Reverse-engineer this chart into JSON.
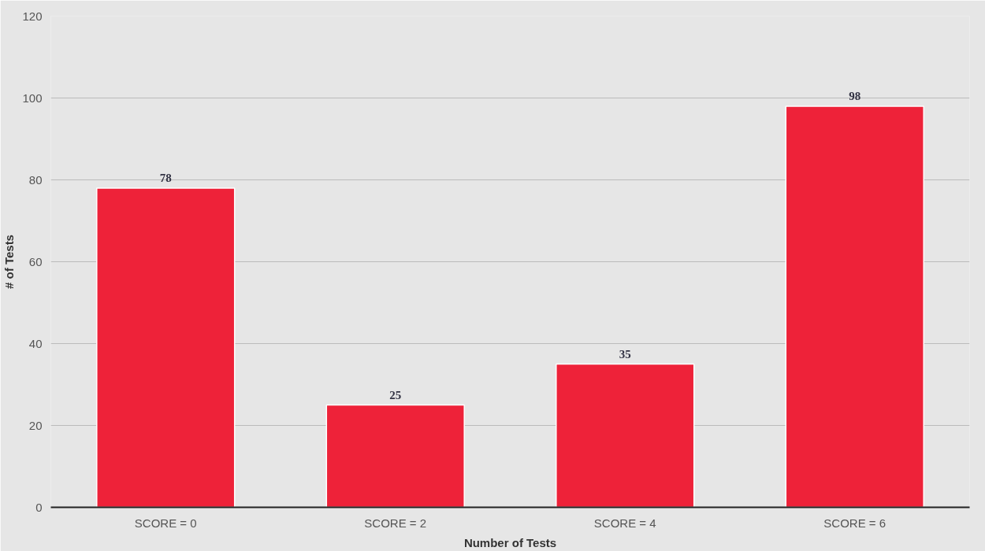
{
  "chart_data": {
    "type": "bar",
    "xlabel": "Number of Tests",
    "ylabel": "# of Tests",
    "categories": [
      "SCORE = 0",
      "SCORE = 2",
      "SCORE = 4",
      "SCORE = 6"
    ],
    "values": [
      78,
      25,
      35,
      98
    ],
    "color": "#ee2239",
    "ylim": [
      0,
      120
    ],
    "yticks": [
      0,
      20,
      40,
      60,
      80,
      100,
      120
    ],
    "grid": "y",
    "data_labels": true
  }
}
